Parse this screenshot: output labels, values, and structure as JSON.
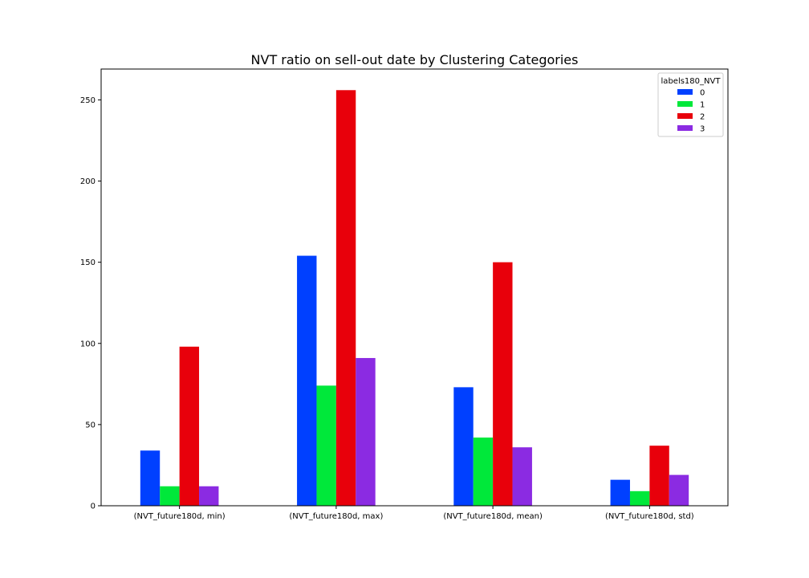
{
  "chart_data": {
    "type": "bar",
    "title": "NVT ratio on sell-out date by Clustering Categories",
    "xlabel": "",
    "ylabel": "",
    "categories": [
      "(NVT_future180d, min)",
      "(NVT_future180d, max)",
      "(NVT_future180d, mean)",
      "(NVT_future180d, std)"
    ],
    "series": [
      {
        "name": "0",
        "color": "#0040ff",
        "values": [
          34,
          154,
          73,
          16
        ]
      },
      {
        "name": "1",
        "color": "#00e83a",
        "values": [
          12,
          74,
          42,
          9
        ]
      },
      {
        "name": "2",
        "color": "#e8000b",
        "values": [
          98,
          256,
          150,
          37
        ]
      },
      {
        "name": "3",
        "color": "#8b2be2",
        "values": [
          12,
          91,
          36,
          19
        ]
      }
    ],
    "ylim": [
      0,
      269
    ],
    "yticks": [
      0,
      50,
      100,
      150,
      200,
      250
    ],
    "grid": false,
    "legend": {
      "title": "labels180_NVT",
      "placement": "top-right"
    }
  }
}
